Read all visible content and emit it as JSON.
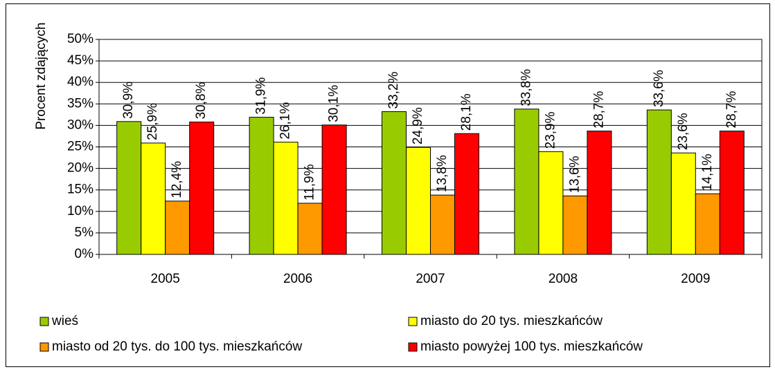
{
  "chart_data": {
    "type": "bar",
    "y_label": "Procent zdających",
    "categories": [
      "2005",
      "2006",
      "2007",
      "2008",
      "2009"
    ],
    "series": [
      {
        "name": "wieś",
        "color": "#99cc00",
        "values": [
          30.9,
          31.9,
          33.2,
          33.8,
          33.6
        ],
        "value_labels": [
          "30,9%",
          "31,9%",
          "33,2%",
          "33,8%",
          "33,6%"
        ]
      },
      {
        "name": "miasto do 20 tys. mieszkańców",
        "color": "#ffff00",
        "values": [
          25.9,
          26.1,
          24.9,
          23.9,
          23.6
        ],
        "value_labels": [
          "25,9%",
          "26,1%",
          "24,9%",
          "23,9%",
          "23,6%"
        ]
      },
      {
        "name": "miasto od 20 tys. do 100 tys. mieszkańców",
        "color": "#ff9900",
        "values": [
          12.4,
          11.9,
          13.8,
          13.6,
          14.1
        ],
        "value_labels": [
          "12,4%",
          "11,9%",
          "13,8%",
          "13,6%",
          "14,1%"
        ]
      },
      {
        "name": "miasto powyżej 100 tys. mieszkańców",
        "color": "#ff0000",
        "values": [
          30.8,
          30.1,
          28.1,
          28.7,
          28.7
        ],
        "value_labels": [
          "30,8%",
          "30,1%",
          "28,1%",
          "28,7%",
          "28,7%"
        ]
      }
    ],
    "ylim": [
      0,
      50
    ],
    "yticks": [
      {
        "value": 0,
        "label": "0%"
      },
      {
        "value": 5,
        "label": "5%"
      },
      {
        "value": 10,
        "label": "10%"
      },
      {
        "value": 15,
        "label": "15%"
      },
      {
        "value": 20,
        "label": "20%"
      },
      {
        "value": 25,
        "label": "25%"
      },
      {
        "value": 30,
        "label": "30%"
      },
      {
        "value": 35,
        "label": "35%"
      },
      {
        "value": 40,
        "label": "40%"
      },
      {
        "value": 45,
        "label": "45%"
      },
      {
        "value": 50,
        "label": "50%"
      }
    ],
    "grid": true
  }
}
